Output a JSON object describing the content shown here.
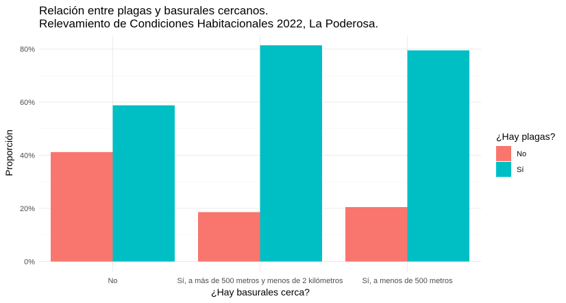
{
  "chart_data": {
    "type": "bar",
    "title": "Relación entre plagas y basurales cercanos.",
    "subtitle": "Relevamiento de Condiciones Habitacionales 2022, La Poderosa.",
    "xlabel": "¿Hay basurales cerca?",
    "ylabel": "Proporción",
    "categories": [
      "No",
      "Sí, a más de 500 metros y menos de 2 kilómetros",
      "Sí, a menos de 500 metros"
    ],
    "series": [
      {
        "name": "No",
        "color": "#F8766D",
        "values": [
          0.412,
          0.186,
          0.205
        ]
      },
      {
        "name": "Sí",
        "color": "#00BFC4",
        "values": [
          0.588,
          0.814,
          0.795
        ]
      }
    ],
    "ylim": [
      0,
      0.85
    ],
    "yticks": [
      0,
      0.2,
      0.4,
      0.6,
      0.8
    ],
    "ytick_labels": [
      "0%",
      "20%",
      "40%",
      "60%",
      "80%"
    ],
    "grid": true,
    "legend_title": "¿Hay plagas?",
    "legend_position": "right"
  }
}
